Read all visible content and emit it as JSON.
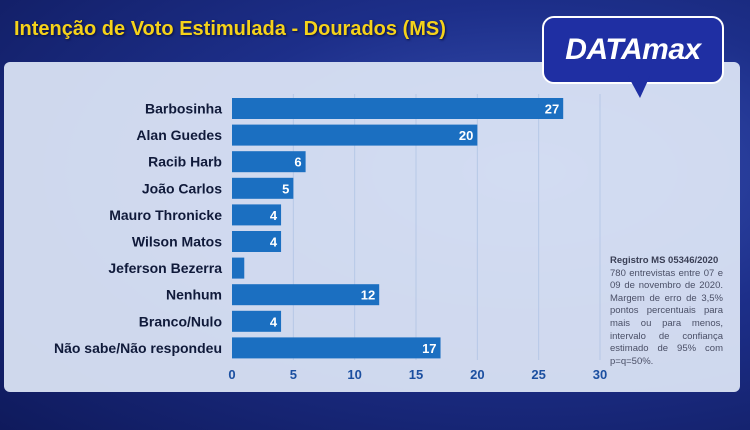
{
  "header": {
    "title": "Intenção de Voto Estimulada - Dourados (MS)"
  },
  "logo": {
    "text": "DATAmax"
  },
  "note": {
    "registro": "Registro MS 05346/2020",
    "text": "780 entrevistas entre 07 e 09 de novembro de 2020. Margem de erro de 3,5% pontos percentuais para mais ou para menos, intervalo de confiança estimado de 95% com p=q=50%."
  },
  "colors": {
    "bar": "#1b6fc1",
    "title": "#f5d21a",
    "label": "#101a3a",
    "grid": "#b6c8e6"
  },
  "chart_data": {
    "type": "bar",
    "orientation": "horizontal",
    "title": "Intenção de Voto Estimulada - Dourados (MS)",
    "categories": [
      "Barbosinha",
      "Alan Guedes",
      "Racib Harb",
      "João Carlos",
      "Mauro Thronicke",
      "Wilson Matos",
      "Jeferson Bezerra",
      "Nenhum",
      "Branco/Nulo",
      "Não sabe/Não respondeu"
    ],
    "values": [
      27,
      20,
      6,
      5,
      4,
      4,
      1,
      12,
      4,
      17
    ],
    "data_labels": [
      "27",
      "20",
      "6",
      "5",
      "4",
      "4",
      "",
      "12",
      "4",
      "17"
    ],
    "xticks": [
      "0",
      "5",
      "10",
      "15",
      "20",
      "25",
      "30"
    ],
    "xlim": [
      0,
      30
    ],
    "grid": true
  }
}
